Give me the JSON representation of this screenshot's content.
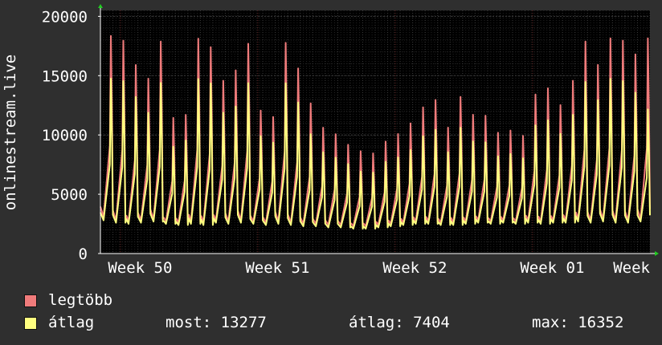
{
  "colors": {
    "background": "#2f2f2f",
    "plot_background": "#000000",
    "grid_major": "#3a3a3a",
    "grid_minor": "#222222",
    "week_line": "#6a2a2a",
    "axis": "#ffffff",
    "arrow": "#22cc22"
  },
  "chart_data": {
    "type": "line",
    "ylabel": "onlinestream.live",
    "ylim": [
      0,
      20500
    ],
    "yticks": [
      0,
      5000,
      10000,
      15000,
      20000
    ],
    "ytick_labels": [
      "0",
      "5000",
      "10000",
      "15000",
      "20000"
    ],
    "xlim": [
      0,
      44
    ],
    "xticks": [
      0.6,
      11.6,
      22.6,
      33.6,
      44
    ],
    "xtick_labels": [
      "Week 50",
      "Week 51",
      "Week 52",
      "Week 01",
      "Week"
    ],
    "grid": true,
    "series": [
      {
        "name": "legtöbb",
        "color": "#f07b7b",
        "daily_peaks": [
          20200,
          19800,
          17500,
          16200,
          19700,
          12500,
          12800,
          20000,
          19200,
          16000,
          17000,
          19500,
          13200,
          12600,
          19600,
          17200,
          13900,
          11600,
          11000,
          10000,
          9400,
          9200,
          10300,
          11000,
          12000,
          13500,
          14200,
          11600,
          14500,
          12800,
          12700,
          11100,
          11300,
          10800,
          14700,
          15300,
          13700,
          16000,
          19700,
          17500,
          20000,
          19800,
          18500,
          20000
        ],
        "daily_troughs": [
          3100,
          2800,
          2700,
          2800,
          2900,
          2700,
          2600,
          2700,
          2600,
          2800,
          2700,
          2800,
          2700,
          2600,
          2700,
          2600,
          2500,
          2500,
          2400,
          2400,
          2300,
          2300,
          2400,
          2500,
          2600,
          2700,
          2700,
          2600,
          2600,
          2700,
          2800,
          2700,
          2800,
          2700,
          2800,
          2700,
          2800,
          2800,
          2900,
          2800,
          2900,
          2800,
          2800,
          2900
        ]
      },
      {
        "name": "átlag",
        "color": "#ffff80",
        "daily_peaks": [
          16200,
          16000,
          14500,
          13000,
          15800,
          9800,
          10400,
          16200,
          15800,
          13000,
          13600,
          15800,
          10800,
          10200,
          15800,
          14000,
          11000,
          9300,
          8800,
          8200,
          7500,
          7400,
          8400,
          8800,
          9500,
          10800,
          11400,
          9300,
          11600,
          10300,
          10200,
          8900,
          9100,
          8700,
          11800,
          12300,
          11000,
          12800,
          15900,
          14200,
          16200,
          16000,
          14900,
          13300
        ],
        "daily_troughs": [
          2800,
          2600,
          2500,
          2600,
          2700,
          2500,
          2400,
          2500,
          2400,
          2600,
          2500,
          2600,
          2500,
          2400,
          2500,
          2400,
          2300,
          2300,
          2200,
          2200,
          2100,
          2100,
          2200,
          2300,
          2400,
          2500,
          2500,
          2400,
          2400,
          2500,
          2600,
          2500,
          2600,
          2500,
          2600,
          2500,
          2600,
          2600,
          2700,
          2600,
          2700,
          2600,
          2600,
          2700
        ]
      }
    ]
  },
  "legend": {
    "max_label": "legtöbb",
    "avg_label": "átlag",
    "now_label": "most:",
    "now_value": "13277",
    "average_label": "átlag:",
    "average_value": "7404",
    "max_stat_label": "max:",
    "max_stat_value": "16352"
  }
}
